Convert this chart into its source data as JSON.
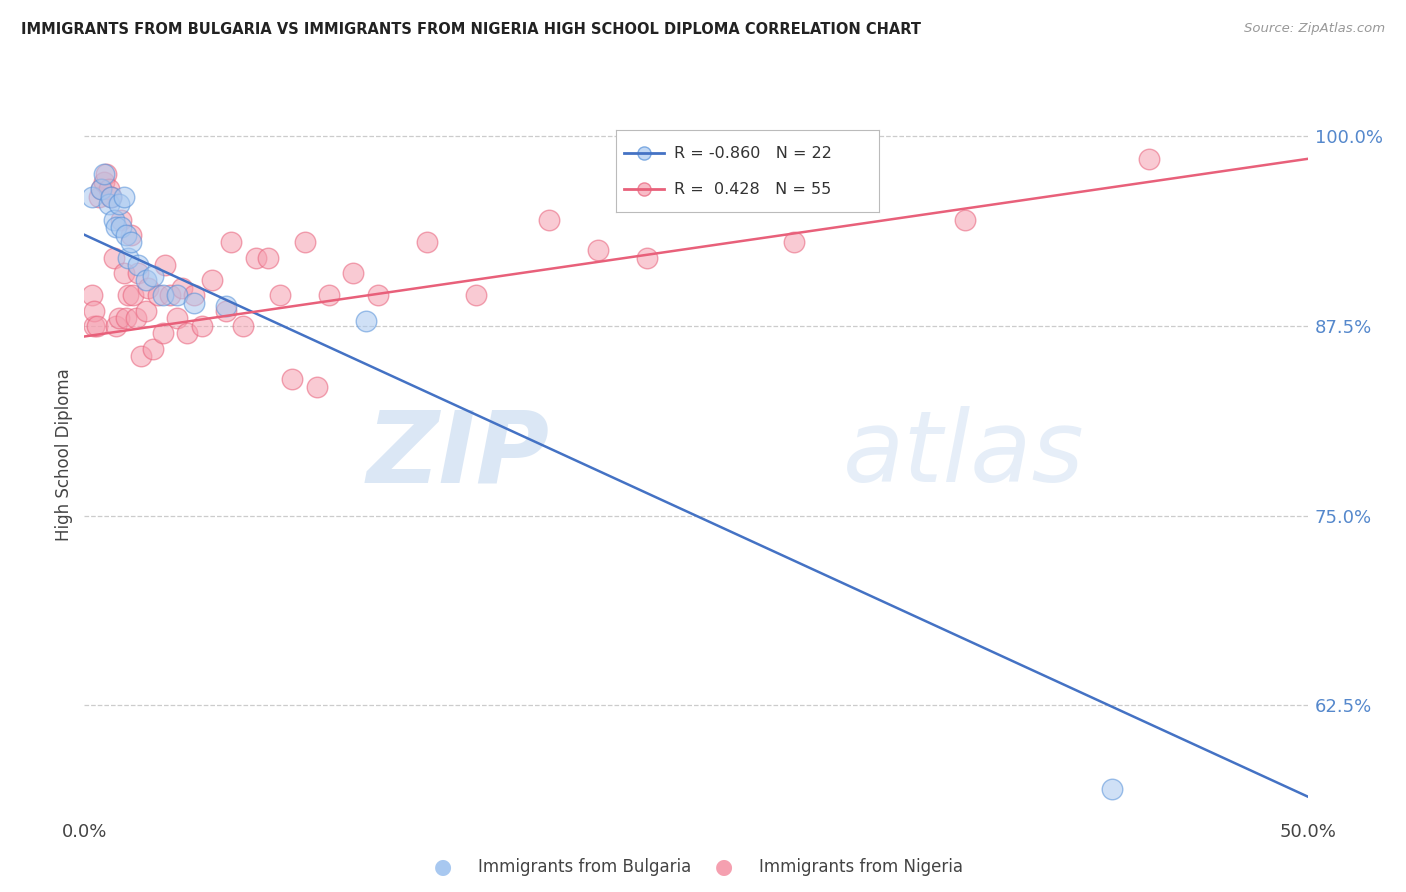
{
  "title": "IMMIGRANTS FROM BULGARIA VS IMMIGRANTS FROM NIGERIA HIGH SCHOOL DIPLOMA CORRELATION CHART",
  "source": "Source: ZipAtlas.com",
  "ylabel": "High School Diploma",
  "yticks": [
    0.625,
    0.75,
    0.875,
    1.0
  ],
  "ytick_labels": [
    "62.5%",
    "75.0%",
    "87.5%",
    "100.0%"
  ],
  "xlim": [
    0.0,
    0.5
  ],
  "ylim": [
    0.555,
    1.025
  ],
  "legend_r_bulgaria": "-0.860",
  "legend_n_bulgaria": "22",
  "legend_r_nigeria": " 0.428",
  "legend_n_nigeria": "55",
  "color_bulgaria_fill": "#A8C8F0",
  "color_nigeria_fill": "#F5A0B0",
  "color_bulgaria_edge": "#5590D8",
  "color_nigeria_edge": "#E8607A",
  "color_bulgaria_line": "#4472C4",
  "color_nigeria_line": "#E8607A",
  "watermark_zip": "ZIP",
  "watermark_atlas": "atlas",
  "bg_color": "#FFFFFF",
  "grid_color": "#CCCCCC",
  "bulgaria_line_x0": 0.0,
  "bulgaria_line_y0": 0.935,
  "bulgaria_line_x1": 0.5,
  "bulgaria_line_y1": 0.565,
  "nigeria_line_x0": 0.0,
  "nigeria_line_y0": 0.868,
  "nigeria_line_x1": 0.5,
  "nigeria_line_y1": 0.985,
  "bulgaria_x": [
    0.003,
    0.007,
    0.008,
    0.01,
    0.011,
    0.012,
    0.013,
    0.014,
    0.015,
    0.016,
    0.017,
    0.018,
    0.019,
    0.022,
    0.025,
    0.028,
    0.032,
    0.038,
    0.045,
    0.058,
    0.115,
    0.42
  ],
  "bulgaria_y": [
    0.96,
    0.965,
    0.975,
    0.955,
    0.96,
    0.945,
    0.94,
    0.955,
    0.94,
    0.96,
    0.935,
    0.92,
    0.93,
    0.915,
    0.905,
    0.908,
    0.895,
    0.895,
    0.89,
    0.888,
    0.878,
    0.57
  ],
  "nigeria_x": [
    0.003,
    0.004,
    0.004,
    0.005,
    0.006,
    0.007,
    0.008,
    0.009,
    0.01,
    0.011,
    0.012,
    0.013,
    0.014,
    0.015,
    0.016,
    0.017,
    0.018,
    0.019,
    0.02,
    0.021,
    0.022,
    0.023,
    0.025,
    0.026,
    0.028,
    0.03,
    0.032,
    0.033,
    0.035,
    0.038,
    0.04,
    0.042,
    0.045,
    0.048,
    0.052,
    0.058,
    0.06,
    0.065,
    0.07,
    0.075,
    0.08,
    0.085,
    0.09,
    0.095,
    0.1,
    0.11,
    0.12,
    0.14,
    0.16,
    0.19,
    0.21,
    0.23,
    0.29,
    0.36,
    0.435
  ],
  "nigeria_y": [
    0.895,
    0.875,
    0.885,
    0.875,
    0.96,
    0.965,
    0.97,
    0.975,
    0.965,
    0.96,
    0.92,
    0.875,
    0.88,
    0.945,
    0.91,
    0.88,
    0.895,
    0.935,
    0.895,
    0.88,
    0.91,
    0.855,
    0.885,
    0.9,
    0.86,
    0.895,
    0.87,
    0.915,
    0.895,
    0.88,
    0.9,
    0.87,
    0.895,
    0.875,
    0.905,
    0.885,
    0.93,
    0.875,
    0.92,
    0.92,
    0.895,
    0.84,
    0.93,
    0.835,
    0.895,
    0.91,
    0.895,
    0.93,
    0.895,
    0.945,
    0.925,
    0.92,
    0.93,
    0.945,
    0.985
  ]
}
